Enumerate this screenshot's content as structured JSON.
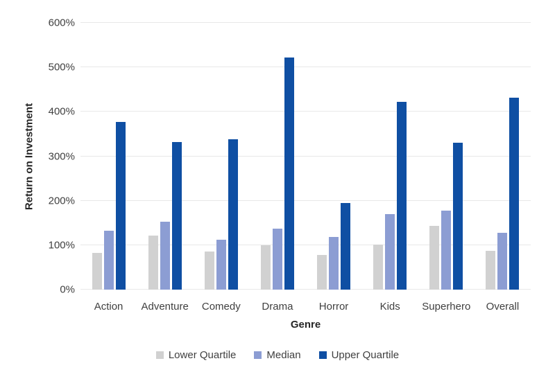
{
  "chart_data": {
    "type": "bar",
    "title": "",
    "xlabel": "Genre",
    "ylabel": "Return on Investment",
    "ylim": [
      0,
      600
    ],
    "ytick_step": 100,
    "ytick_suffix": "%",
    "grid": true,
    "legend_position": "bottom",
    "categories": [
      "Action",
      "Adventure",
      "Comedy",
      "Drama",
      "Horror",
      "Kids",
      "Superhero",
      "Overall"
    ],
    "series": [
      {
        "name": "Lower Quartile",
        "color": "#d1d1d1",
        "values": [
          82,
          121,
          85,
          100,
          78,
          102,
          143,
          88
        ]
      },
      {
        "name": "Median",
        "color": "#8c9dd3",
        "values": [
          133,
          153,
          113,
          137,
          119,
          170,
          178,
          128
        ]
      },
      {
        "name": "Upper Quartile",
        "color": "#0f4fa3",
        "values": [
          377,
          332,
          338,
          522,
          195,
          423,
          330,
          431
        ]
      }
    ]
  },
  "colors": {
    "background": "#ffffff",
    "gridline": "#e8e8e8",
    "tick_text": "#3f3f3f",
    "title_text": "#262626"
  }
}
